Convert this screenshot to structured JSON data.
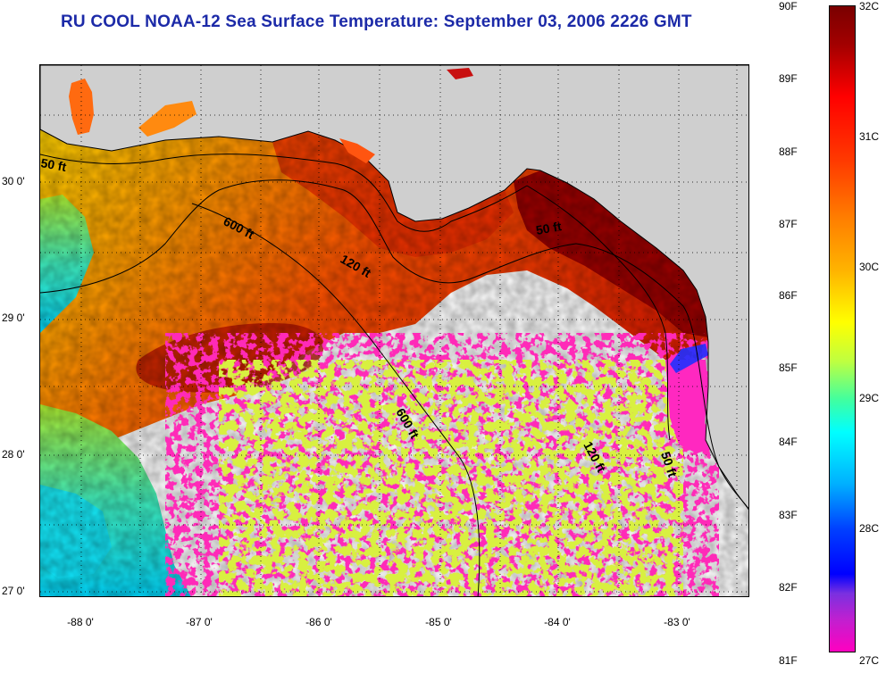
{
  "title": "RU COOL  NOAA-12  Sea Surface Temperature:  September 03, 2006 2226 GMT",
  "map": {
    "lat_labels": [
      "30 0'",
      "29 0'",
      "28 0'",
      "27 0'"
    ],
    "lon_labels": [
      "-88 0'",
      "-87 0'",
      "-86 0'",
      "-85 0'",
      "-84 0'",
      "-83 0'"
    ],
    "contour_labels": [
      "50 ft",
      "600 ft",
      "120 ft",
      "50 ft",
      "600 ft",
      "120 ft",
      "50 ft"
    ],
    "colors": {
      "land": "#cfcfcf",
      "cloud": "#ffffff",
      "warm": "#b00000",
      "mid": "#ff6a00",
      "cool": "#00e0ff",
      "cold": "#ff20b0"
    }
  },
  "colorbar": {
    "fahrenheit_labels": [
      "90F",
      "89F",
      "88F",
      "87F",
      "86F",
      "85F",
      "84F",
      "83F",
      "82F",
      "81F"
    ],
    "celsius_labels": [
      "32C",
      "31C",
      "30C",
      "29C",
      "28C",
      "27C"
    ]
  }
}
